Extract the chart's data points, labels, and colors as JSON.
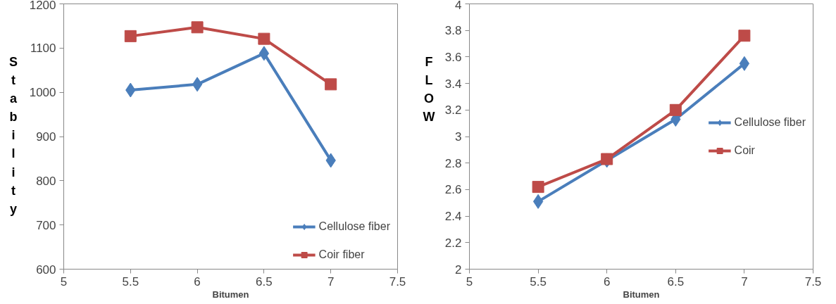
{
  "chart_data": [
    {
      "type": "line",
      "ylabel": "Stability",
      "xlabel": "Bitumen",
      "x": [
        5.5,
        6,
        6.5,
        7
      ],
      "xlim": [
        5,
        7.5
      ],
      "xticks": [
        5,
        5.5,
        6,
        6.5,
        7,
        7.5
      ],
      "ylim": [
        600,
        1200
      ],
      "yticks": [
        600,
        700,
        800,
        900,
        1000,
        1100,
        1200
      ],
      "grid": false,
      "legend": "bottom right",
      "line_style": "solid",
      "series": [
        {
          "name": "Cellulose fiber",
          "color": "#4a7ebb",
          "marker": "diamond",
          "values": [
            1005,
            1018,
            1088,
            846
          ]
        },
        {
          "name": "Coir fiber",
          "color": "#be4b48",
          "marker": "square",
          "values": [
            1127,
            1147,
            1121,
            1018
          ]
        }
      ]
    },
    {
      "type": "line",
      "ylabel": "FLOW",
      "xlabel": "Bitumen",
      "x": [
        5.5,
        6,
        6.5,
        7
      ],
      "xlim": [
        5,
        7.5
      ],
      "xticks": [
        5,
        5.5,
        6,
        6.5,
        7,
        7.5
      ],
      "ylim": [
        2,
        4
      ],
      "yticks": [
        2,
        2.2,
        2.4,
        2.6,
        2.8,
        3,
        3.2,
        3.4,
        3.6,
        3.8,
        4
      ],
      "grid": false,
      "legend": "right",
      "line_style": "solid",
      "series": [
        {
          "name": "Cellulose fiber",
          "color": "#4a7ebb",
          "marker": "diamond",
          "values": [
            2.51,
            2.82,
            3.13,
            3.55
          ]
        },
        {
          "name": "Coir",
          "color": "#be4b48",
          "marker": "square",
          "values": [
            2.62,
            2.83,
            3.2,
            3.76
          ]
        }
      ]
    }
  ]
}
